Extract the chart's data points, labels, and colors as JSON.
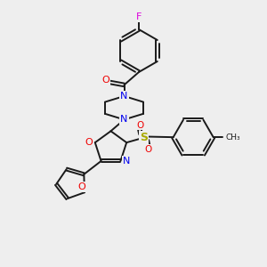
{
  "background_color": "#eeeeee",
  "bond_color": "#1a1a1a",
  "nitrogen_color": "#0000ee",
  "oxygen_color": "#ee0000",
  "sulfur_color": "#aaaa00",
  "fluorine_color": "#dd00dd",
  "carbon_color": "#1a1a1a",
  "line_width": 1.4,
  "figsize": [
    3.0,
    3.0
  ],
  "dpi": 100,
  "xlim": [
    0,
    10
  ],
  "ylim": [
    0,
    10
  ]
}
